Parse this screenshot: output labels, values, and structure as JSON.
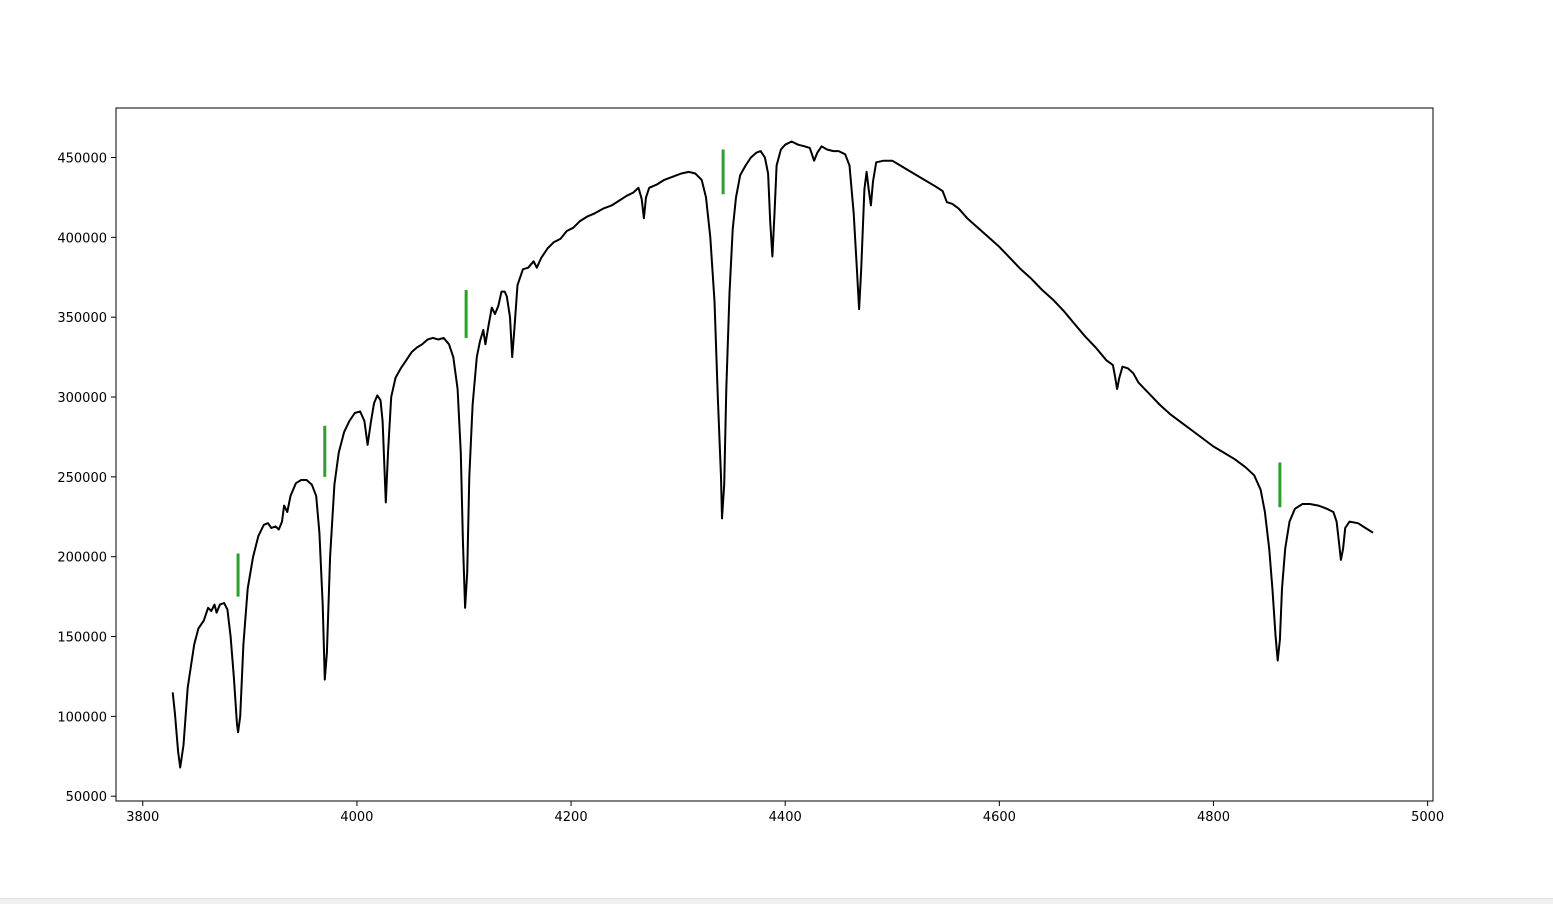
{
  "chart_data": {
    "type": "line",
    "title": "",
    "xlabel": "",
    "ylabel": "",
    "xlim": [
      3775,
      5005
    ],
    "ylim": [
      47000,
      481000
    ],
    "grid": false,
    "x_ticks": [
      3800,
      4000,
      4200,
      4400,
      4600,
      4800,
      5000
    ],
    "y_ticks": [
      50000,
      100000,
      150000,
      200000,
      250000,
      300000,
      350000,
      400000,
      450000
    ],
    "x_tick_labels": [
      "3800",
      "4000",
      "4200",
      "4400",
      "4600",
      "4800",
      "5000"
    ],
    "y_tick_labels": [
      "50000",
      "100000",
      "150000",
      "200000",
      "250000",
      "300000",
      "350000",
      "400000",
      "450000"
    ],
    "series": [
      {
        "color": "#000000",
        "points": [
          [
            3828,
            115000
          ],
          [
            3830,
            102000
          ],
          [
            3833,
            78000
          ],
          [
            3835,
            68000
          ],
          [
            3838,
            82000
          ],
          [
            3842,
            118000
          ],
          [
            3848,
            145000
          ],
          [
            3852,
            155000
          ],
          [
            3857,
            160000
          ],
          [
            3861,
            168000
          ],
          [
            3864,
            166000
          ],
          [
            3867,
            170000
          ],
          [
            3869,
            165000
          ],
          [
            3872,
            170000
          ],
          [
            3876,
            171000
          ],
          [
            3879,
            167000
          ],
          [
            3882,
            150000
          ],
          [
            3885,
            125000
          ],
          [
            3888,
            95000
          ],
          [
            3889,
            90000
          ],
          [
            3891,
            100000
          ],
          [
            3894,
            145000
          ],
          [
            3898,
            180000
          ],
          [
            3903,
            200000
          ],
          [
            3908,
            213000
          ],
          [
            3913,
            220000
          ],
          [
            3917,
            221000
          ],
          [
            3920,
            218000
          ],
          [
            3924,
            219000
          ],
          [
            3927,
            217000
          ],
          [
            3930,
            222000
          ],
          [
            3932,
            232000
          ],
          [
            3935,
            228000
          ],
          [
            3938,
            238000
          ],
          [
            3943,
            246000
          ],
          [
            3948,
            248000
          ],
          [
            3953,
            248000
          ],
          [
            3958,
            245000
          ],
          [
            3962,
            238000
          ],
          [
            3965,
            215000
          ],
          [
            3968,
            170000
          ],
          [
            3970,
            123000
          ],
          [
            3972,
            140000
          ],
          [
            3975,
            200000
          ],
          [
            3979,
            245000
          ],
          [
            3983,
            265000
          ],
          [
            3988,
            278000
          ],
          [
            3993,
            285000
          ],
          [
            3998,
            290000
          ],
          [
            4003,
            291000
          ],
          [
            4007,
            285000
          ],
          [
            4010,
            270000
          ],
          [
            4013,
            284000
          ],
          [
            4016,
            296000
          ],
          [
            4019,
            301000
          ],
          [
            4022,
            298000
          ],
          [
            4024,
            285000
          ],
          [
            4026,
            250000
          ],
          [
            4027,
            234000
          ],
          [
            4029,
            265000
          ],
          [
            4032,
            300000
          ],
          [
            4036,
            312000
          ],
          [
            4041,
            318000
          ],
          [
            4046,
            323000
          ],
          [
            4051,
            328000
          ],
          [
            4056,
            331000
          ],
          [
            4061,
            333000
          ],
          [
            4066,
            336000
          ],
          [
            4071,
            337000
          ],
          [
            4076,
            336000
          ],
          [
            4081,
            337000
          ],
          [
            4086,
            333000
          ],
          [
            4090,
            325000
          ],
          [
            4094,
            305000
          ],
          [
            4097,
            265000
          ],
          [
            4099,
            210000
          ],
          [
            4101,
            168000
          ],
          [
            4103,
            190000
          ],
          [
            4105,
            250000
          ],
          [
            4108,
            295000
          ],
          [
            4112,
            325000
          ],
          [
            4115,
            335000
          ],
          [
            4118,
            342000
          ],
          [
            4120,
            333000
          ],
          [
            4123,
            345000
          ],
          [
            4126,
            356000
          ],
          [
            4129,
            352000
          ],
          [
            4132,
            357000
          ],
          [
            4135,
            366000
          ],
          [
            4138,
            366000
          ],
          [
            4140,
            363000
          ],
          [
            4143,
            350000
          ],
          [
            4145,
            325000
          ],
          [
            4147,
            342000
          ],
          [
            4150,
            370000
          ],
          [
            4155,
            380000
          ],
          [
            4160,
            381000
          ],
          [
            4165,
            385000
          ],
          [
            4168,
            381000
          ],
          [
            4172,
            387000
          ],
          [
            4178,
            393000
          ],
          [
            4184,
            397000
          ],
          [
            4190,
            399000
          ],
          [
            4196,
            404000
          ],
          [
            4202,
            406000
          ],
          [
            4208,
            410000
          ],
          [
            4215,
            413000
          ],
          [
            4222,
            415000
          ],
          [
            4230,
            418000
          ],
          [
            4238,
            420000
          ],
          [
            4245,
            423000
          ],
          [
            4252,
            426000
          ],
          [
            4258,
            428000
          ],
          [
            4263,
            431000
          ],
          [
            4266,
            424000
          ],
          [
            4268,
            412000
          ],
          [
            4270,
            425000
          ],
          [
            4273,
            431000
          ],
          [
            4280,
            433000
          ],
          [
            4287,
            436000
          ],
          [
            4295,
            438000
          ],
          [
            4303,
            440000
          ],
          [
            4310,
            441000
          ],
          [
            4316,
            440000
          ],
          [
            4322,
            436000
          ],
          [
            4326,
            425000
          ],
          [
            4330,
            400000
          ],
          [
            4334,
            360000
          ],
          [
            4337,
            300000
          ],
          [
            4340,
            250000
          ],
          [
            4341,
            224000
          ],
          [
            4343,
            245000
          ],
          [
            4345,
            305000
          ],
          [
            4348,
            365000
          ],
          [
            4351,
            405000
          ],
          [
            4354,
            425000
          ],
          [
            4358,
            439000
          ],
          [
            4363,
            445000
          ],
          [
            4368,
            450000
          ],
          [
            4373,
            453000
          ],
          [
            4377,
            454000
          ],
          [
            4381,
            450000
          ],
          [
            4384,
            440000
          ],
          [
            4386,
            410000
          ],
          [
            4388,
            388000
          ],
          [
            4390,
            415000
          ],
          [
            4392,
            445000
          ],
          [
            4396,
            455000
          ],
          [
            4400,
            458000
          ],
          [
            4406,
            460000
          ],
          [
            4412,
            458000
          ],
          [
            4418,
            457000
          ],
          [
            4423,
            456000
          ],
          [
            4427,
            448000
          ],
          [
            4430,
            453000
          ],
          [
            4434,
            457000
          ],
          [
            4439,
            455000
          ],
          [
            4445,
            454000
          ],
          [
            4450,
            454000
          ],
          [
            4456,
            452000
          ],
          [
            4460,
            445000
          ],
          [
            4464,
            415000
          ],
          [
            4467,
            380000
          ],
          [
            4469,
            355000
          ],
          [
            4471,
            380000
          ],
          [
            4474,
            430000
          ],
          [
            4476,
            441000
          ],
          [
            4478,
            430000
          ],
          [
            4480,
            420000
          ],
          [
            4482,
            435000
          ],
          [
            4485,
            447000
          ],
          [
            4492,
            448000
          ],
          [
            4500,
            448000
          ],
          [
            4510,
            444000
          ],
          [
            4520,
            440000
          ],
          [
            4530,
            436000
          ],
          [
            4540,
            432000
          ],
          [
            4547,
            429000
          ],
          [
            4551,
            422000
          ],
          [
            4556,
            421000
          ],
          [
            4562,
            418000
          ],
          [
            4570,
            412000
          ],
          [
            4580,
            406000
          ],
          [
            4590,
            400000
          ],
          [
            4600,
            394000
          ],
          [
            4610,
            387000
          ],
          [
            4620,
            380000
          ],
          [
            4630,
            374000
          ],
          [
            4640,
            367000
          ],
          [
            4650,
            361000
          ],
          [
            4660,
            354000
          ],
          [
            4670,
            346000
          ],
          [
            4680,
            338000
          ],
          [
            4690,
            331000
          ],
          [
            4700,
            323000
          ],
          [
            4706,
            320000
          ],
          [
            4708,
            313000
          ],
          [
            4710,
            305000
          ],
          [
            4712,
            312000
          ],
          [
            4715,
            319000
          ],
          [
            4720,
            318000
          ],
          [
            4725,
            315000
          ],
          [
            4730,
            309000
          ],
          [
            4740,
            302000
          ],
          [
            4750,
            295000
          ],
          [
            4760,
            289000
          ],
          [
            4770,
            284000
          ],
          [
            4780,
            279000
          ],
          [
            4790,
            274000
          ],
          [
            4800,
            269000
          ],
          [
            4810,
            265000
          ],
          [
            4820,
            261000
          ],
          [
            4830,
            256000
          ],
          [
            4838,
            251000
          ],
          [
            4844,
            242000
          ],
          [
            4848,
            228000
          ],
          [
            4852,
            205000
          ],
          [
            4855,
            180000
          ],
          [
            4858,
            150000
          ],
          [
            4860,
            135000
          ],
          [
            4862,
            148000
          ],
          [
            4864,
            180000
          ],
          [
            4867,
            205000
          ],
          [
            4871,
            222000
          ],
          [
            4876,
            230000
          ],
          [
            4883,
            233000
          ],
          [
            4890,
            233000
          ],
          [
            4898,
            232000
          ],
          [
            4906,
            230000
          ],
          [
            4912,
            228000
          ],
          [
            4915,
            222000
          ],
          [
            4917,
            210000
          ],
          [
            4919,
            198000
          ],
          [
            4921,
            205000
          ],
          [
            4923,
            218000
          ],
          [
            4927,
            222000
          ],
          [
            4935,
            221000
          ],
          [
            4942,
            218000
          ],
          [
            4949,
            215000
          ]
        ]
      }
    ],
    "markers": [
      {
        "x": 3889,
        "y1": 175000,
        "y2": 202000,
        "color": "#2ca02c"
      },
      {
        "x": 3970,
        "y1": 250000,
        "y2": 282000,
        "color": "#2ca02c"
      },
      {
        "x": 4102,
        "y1": 337000,
        "y2": 367000,
        "color": "#2ca02c"
      },
      {
        "x": 4342,
        "y1": 427000,
        "y2": 455000,
        "color": "#2ca02c"
      },
      {
        "x": 4862,
        "y1": 231000,
        "y2": 259000,
        "color": "#2ca02c"
      }
    ]
  }
}
